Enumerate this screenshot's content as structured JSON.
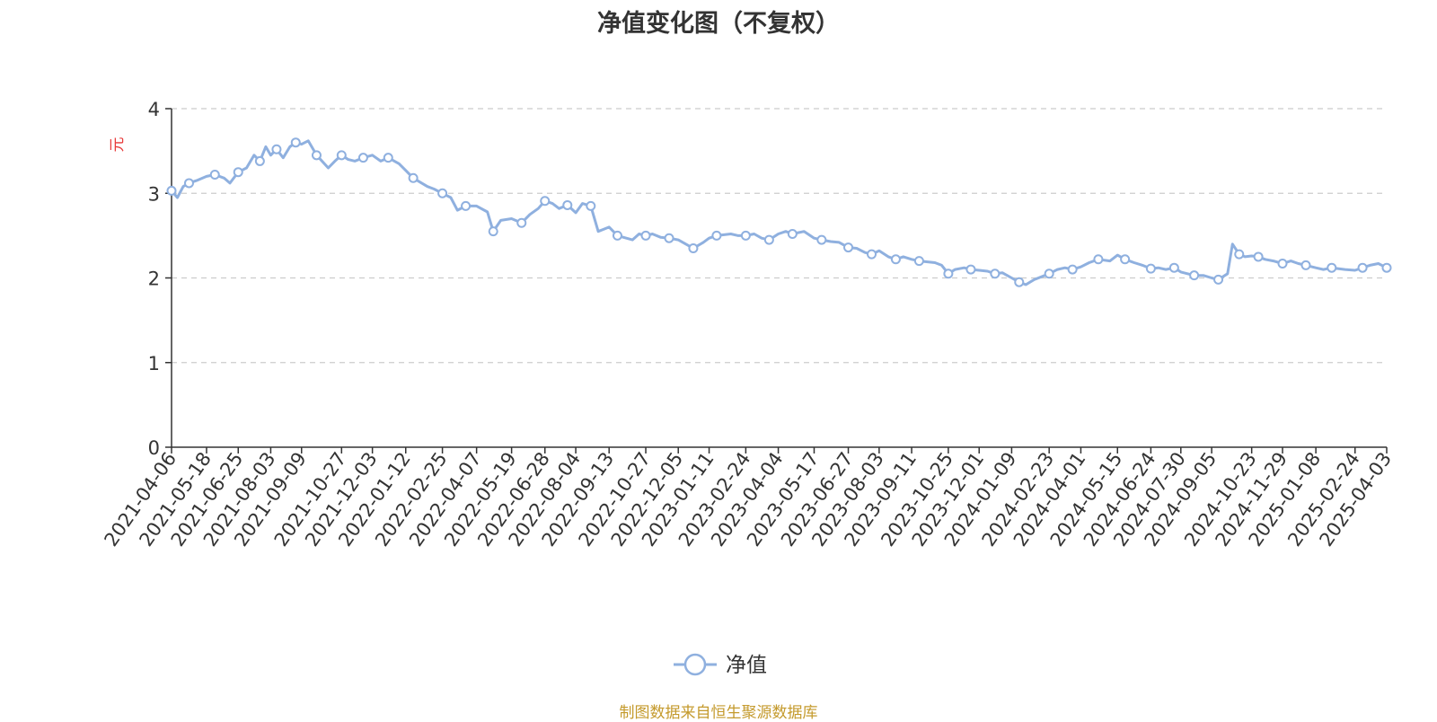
{
  "colors": {
    "line": "#8fb0df",
    "grid": "#cccccc",
    "ylabel": "#e83a3a",
    "source": "#c49a2c"
  },
  "source_note": "制图数据来自恒生聚源数据库",
  "chart_data": {
    "type": "line",
    "title": "净值变化图（不复权）",
    "ylabel": "元",
    "xlabel": "",
    "ylim": [
      0,
      4
    ],
    "yticks": [
      0,
      1,
      2,
      3,
      4
    ],
    "grid": true,
    "legend_position": "bottom-center",
    "x_tick_labels": [
      "2021-04-06",
      "2021-05-18",
      "2021-06-25",
      "2021-08-03",
      "2021-09-09",
      "2021-10-27",
      "2021-12-03",
      "2022-01-12",
      "2022-02-25",
      "2022-04-07",
      "2022-05-19",
      "2022-06-28",
      "2022-08-04",
      "2022-09-13",
      "2022-10-27",
      "2022-12-05",
      "2023-01-11",
      "2023-02-24",
      "2023-04-04",
      "2023-05-17",
      "2023-06-27",
      "2023-08-03",
      "2023-09-11",
      "2023-10-25",
      "2023-12-01",
      "2024-01-09",
      "2024-02-23",
      "2024-04-01",
      "2024-05-15",
      "2024-06-24",
      "2024-07-30",
      "2024-09-05",
      "2024-10-23",
      "2024-11-29",
      "2025-01-08",
      "2025-02-24",
      "2025-04-03"
    ],
    "series": [
      {
        "name": "净值",
        "x": [
          "2021-04-06",
          "2021-04-13",
          "2021-04-20",
          "2021-04-27",
          "2021-05-06",
          "2021-05-18",
          "2021-05-28",
          "2021-06-08",
          "2021-06-15",
          "2021-06-25",
          "2021-07-05",
          "2021-07-14",
          "2021-07-21",
          "2021-07-28",
          "2021-08-03",
          "2021-08-10",
          "2021-08-18",
          "2021-08-26",
          "2021-09-02",
          "2021-09-09",
          "2021-09-17",
          "2021-09-27",
          "2021-10-11",
          "2021-10-19",
          "2021-10-27",
          "2021-11-04",
          "2021-11-12",
          "2021-11-22",
          "2021-12-03",
          "2021-12-13",
          "2021-12-22",
          "2022-01-04",
          "2022-01-12",
          "2022-01-21",
          "2022-02-07",
          "2022-02-15",
          "2022-02-25",
          "2022-03-07",
          "2022-03-15",
          "2022-03-25",
          "2022-04-07",
          "2022-04-20",
          "2022-04-27",
          "2022-05-06",
          "2022-05-19",
          "2022-05-31",
          "2022-06-10",
          "2022-06-20",
          "2022-06-28",
          "2022-07-07",
          "2022-07-15",
          "2022-07-25",
          "2022-08-04",
          "2022-08-12",
          "2022-08-22",
          "2022-08-31",
          "2022-09-13",
          "2022-09-23",
          "2022-10-11",
          "2022-10-19",
          "2022-10-27",
          "2022-11-04",
          "2022-11-14",
          "2022-11-24",
          "2022-12-05",
          "2022-12-14",
          "2022-12-23",
          "2023-01-04",
          "2023-01-11",
          "2023-01-20",
          "2023-02-06",
          "2023-02-15",
          "2023-02-24",
          "2023-03-06",
          "2023-03-15",
          "2023-03-24",
          "2023-04-04",
          "2023-04-13",
          "2023-04-21",
          "2023-05-05",
          "2023-05-17",
          "2023-05-26",
          "2023-06-06",
          "2023-06-16",
          "2023-06-27",
          "2023-07-07",
          "2023-07-17",
          "2023-07-25",
          "2023-08-03",
          "2023-08-14",
          "2023-08-23",
          "2023-09-01",
          "2023-09-11",
          "2023-09-20",
          "2023-10-09",
          "2023-10-17",
          "2023-10-25",
          "2023-11-02",
          "2023-11-13",
          "2023-11-21",
          "2023-12-01",
          "2023-12-11",
          "2023-12-20",
          "2023-12-29",
          "2024-01-09",
          "2024-01-18",
          "2024-01-26",
          "2024-02-05",
          "2024-02-23",
          "2024-03-04",
          "2024-03-13",
          "2024-03-22",
          "2024-04-01",
          "2024-04-11",
          "2024-04-22",
          "2024-05-06",
          "2024-05-15",
          "2024-05-24",
          "2024-06-04",
          "2024-06-14",
          "2024-06-24",
          "2024-07-03",
          "2024-07-12",
          "2024-07-22",
          "2024-07-30",
          "2024-08-07",
          "2024-08-15",
          "2024-08-26",
          "2024-09-05",
          "2024-09-13",
          "2024-09-24",
          "2024-09-30",
          "2024-10-08",
          "2024-10-15",
          "2024-10-23",
          "2024-10-31",
          "2024-11-08",
          "2024-11-18",
          "2024-11-29",
          "2024-12-09",
          "2024-12-18",
          "2024-12-27",
          "2025-01-08",
          "2025-01-17",
          "2025-01-27",
          "2025-02-12",
          "2025-02-24",
          "2025-03-05",
          "2025-03-14",
          "2025-03-24",
          "2025-04-03"
        ],
        "values": [
          3.03,
          2.95,
          3.08,
          3.12,
          3.15,
          3.2,
          3.22,
          3.18,
          3.12,
          3.25,
          3.3,
          3.45,
          3.38,
          3.55,
          3.45,
          3.52,
          3.42,
          3.55,
          3.6,
          3.58,
          3.62,
          3.45,
          3.3,
          3.38,
          3.45,
          3.4,
          3.38,
          3.42,
          3.45,
          3.38,
          3.42,
          3.35,
          3.27,
          3.18,
          3.08,
          3.05,
          3.0,
          2.95,
          2.8,
          2.85,
          2.85,
          2.78,
          2.55,
          2.68,
          2.7,
          2.65,
          2.75,
          2.82,
          2.91,
          2.88,
          2.82,
          2.86,
          2.77,
          2.88,
          2.85,
          2.55,
          2.6,
          2.5,
          2.45,
          2.52,
          2.5,
          2.52,
          2.48,
          2.47,
          2.45,
          2.4,
          2.35,
          2.42,
          2.47,
          2.5,
          2.52,
          2.5,
          2.5,
          2.52,
          2.47,
          2.45,
          2.52,
          2.55,
          2.52,
          2.55,
          2.47,
          2.45,
          2.43,
          2.42,
          2.36,
          2.35,
          2.3,
          2.28,
          2.32,
          2.25,
          2.22,
          2.25,
          2.22,
          2.2,
          2.18,
          2.15,
          2.05,
          2.1,
          2.12,
          2.1,
          2.09,
          2.08,
          2.05,
          2.06,
          2.0,
          1.95,
          1.92,
          1.98,
          2.05,
          2.1,
          2.12,
          2.1,
          2.13,
          2.18,
          2.22,
          2.2,
          2.27,
          2.22,
          2.18,
          2.15,
          2.11,
          2.12,
          2.1,
          2.12,
          2.07,
          2.05,
          2.03,
          2.03,
          2.0,
          1.98,
          2.05,
          2.4,
          2.28,
          2.25,
          2.26,
          2.25,
          2.22,
          2.2,
          2.17,
          2.2,
          2.17,
          2.15,
          2.12,
          2.1,
          2.12,
          2.1,
          2.09,
          2.12,
          2.15,
          2.17,
          2.12
        ]
      }
    ]
  }
}
